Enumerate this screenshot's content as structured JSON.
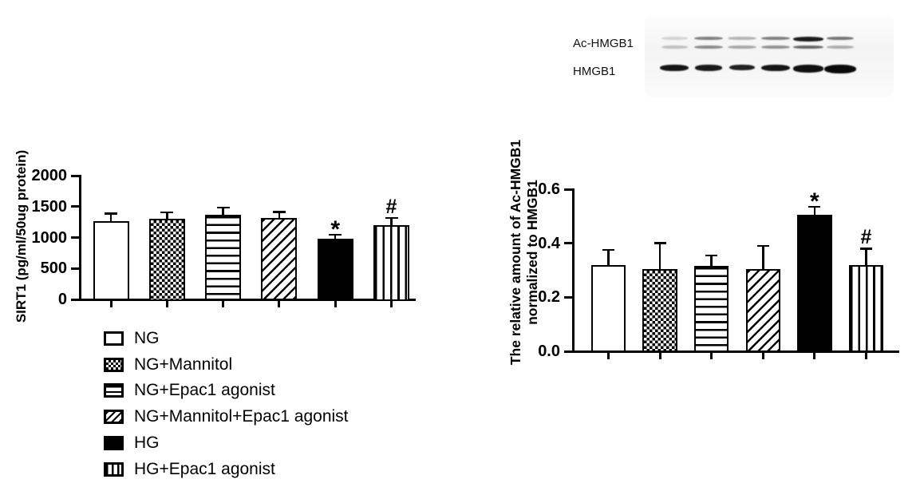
{
  "figure": {
    "background": "#ffffff",
    "ink_color": "#000000"
  },
  "legend": {
    "items": [
      {
        "label": "NG",
        "pattern": "open"
      },
      {
        "label": "NG+Mannitol",
        "pattern": "checker"
      },
      {
        "label": "NG+Epac1 agonist",
        "pattern": "hlines"
      },
      {
        "label": "NG+Mannitol+Epac1 agonist",
        "pattern": "dlines"
      },
      {
        "label": "HG",
        "pattern": "solid"
      },
      {
        "label": "HG+Epac1 agonist",
        "pattern": "vlines"
      }
    ]
  },
  "blot": {
    "row_labels": [
      "Ac-HMGB1",
      "HMGB1"
    ],
    "lanes": 6,
    "lane_centers": [
      845,
      888,
      930,
      972,
      1013,
      1053
    ],
    "ac_upper_intensity": [
      0.15,
      0.5,
      0.28,
      0.5,
      0.92,
      0.55
    ],
    "ac_lower_intensity": [
      0.22,
      0.45,
      0.32,
      0.42,
      0.6,
      0.3
    ],
    "hmgb1_intensity": [
      0.95,
      0.93,
      0.9,
      0.95,
      0.97,
      1
    ],
    "hmgb1_heights": [
      8,
      7.5,
      7,
      8,
      9.5,
      11
    ],
    "hmgb1_widths": [
      36,
      34,
      32,
      36,
      38,
      40
    ],
    "ac_widths": [
      33,
      36,
      36,
      36,
      38,
      34
    ]
  },
  "chart_data": [
    {
      "type": "bar",
      "title": "",
      "ylabel": "SIRT1 (pg/ml/50ug protein)",
      "xlabel": "",
      "categories": [
        "NG",
        "NG+Mannitol",
        "NG+Epac1 agonist",
        "NG+Mannitol+Epac1 agonist",
        "HG",
        "HG+Epac1 agonist"
      ],
      "values": [
        1270,
        1300,
        1365,
        1310,
        980,
        1200
      ],
      "errors_up": [
        115,
        105,
        120,
        105,
        65,
        115
      ],
      "annotations": [
        "",
        "",
        "",
        "",
        "*",
        "#"
      ],
      "patterns": [
        "open",
        "checker",
        "hlines",
        "dlines",
        "solid",
        "vlines"
      ],
      "ylim": [
        0,
        2000
      ],
      "yticks": [
        {
          "label": "0",
          "value": 0
        },
        {
          "label": "500",
          "value": 500
        },
        {
          "label": "1000",
          "value": 1000
        },
        {
          "label": "1500",
          "value": 1500
        },
        {
          "label": "2000",
          "value": 2000
        }
      ],
      "grid": false,
      "legend_position": "below-left"
    },
    {
      "type": "bar",
      "title": "",
      "ylabel": "The relative amount of Ac-HMGB1 normalized to HMGB1",
      "ylabel_lines": [
        "The relative amount of Ac-HMGB1",
        "normalized to HMGB1"
      ],
      "xlabel": "",
      "categories": [
        "NG",
        "NG+Mannitol",
        "NG+Epac1 agonist",
        "NG+Mannitol+Epac1 agonist",
        "HG",
        "HG+Epac1 agonist"
      ],
      "values": [
        0.32,
        0.305,
        0.315,
        0.305,
        0.505,
        0.32
      ],
      "errors_up": [
        0.055,
        0.095,
        0.04,
        0.085,
        0.03,
        0.06
      ],
      "annotations": [
        "",
        "",
        "",
        "",
        "*",
        "#"
      ],
      "patterns": [
        "open",
        "checker",
        "hlines",
        "dlines",
        "solid",
        "vlines"
      ],
      "ylim": [
        0,
        0.6
      ],
      "yticks": [
        {
          "label": "0.0",
          "value": 0
        },
        {
          "label": "0.2",
          "value": 0.2
        },
        {
          "label": "0.4",
          "value": 0.4
        },
        {
          "label": "0.6",
          "value": 0.6
        }
      ],
      "grid": false,
      "legend_position": "none"
    }
  ]
}
